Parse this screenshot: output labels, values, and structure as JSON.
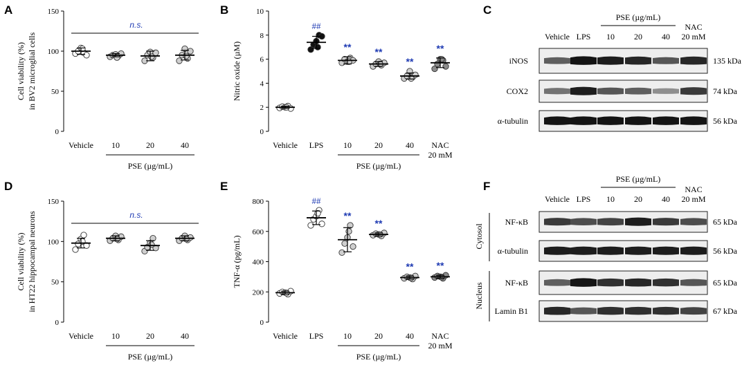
{
  "chart_data": [
    {
      "panel": "A",
      "type": "scatter",
      "ylabel": "Cell viability (%)\nin BV2 microglial cells",
      "ylabel_lines": [
        "Cell viability (%)",
        "in BV2 microglial cells"
      ],
      "ylim": [
        0,
        150
      ],
      "yticks": [
        0,
        50,
        100,
        150
      ],
      "categories": [
        "Vehicle",
        "10",
        "20",
        "40"
      ],
      "group_label": "PSE (µg/mL)",
      "significance": "n.s.",
      "means": [
        100,
        95,
        94,
        95
      ],
      "sd": [
        4,
        2,
        6,
        6
      ],
      "points": [
        [
          97,
          100,
          104,
          98,
          95,
          103
        ],
        [
          93,
          95,
          96,
          94,
          97,
          92
        ],
        [
          88,
          95,
          99,
          92,
          98,
          93
        ],
        [
          88,
          95,
          103,
          91,
          100,
          94
        ]
      ],
      "fill": [
        "white",
        "lightgray",
        "lightgray",
        "lightgray"
      ]
    },
    {
      "panel": "B",
      "type": "scatter",
      "ylabel": "Nitric oxide (µM)",
      "ylim": [
        0,
        10
      ],
      "yticks": [
        0,
        2,
        4,
        6,
        8,
        10
      ],
      "categories": [
        "Vehicle",
        "LPS",
        "10",
        "20",
        "40",
        "NAC\n20 mM"
      ],
      "category_lines": [
        [
          "Vehicle"
        ],
        [
          "LPS"
        ],
        [
          "10"
        ],
        [
          "20"
        ],
        [
          "40"
        ],
        [
          "NAC",
          "20 mM"
        ]
      ],
      "group_label": "PSE (µg/mL)",
      "means": [
        2.0,
        7.4,
        5.9,
        5.6,
        4.6,
        5.7
      ],
      "sd": [
        0.1,
        0.5,
        0.3,
        0.2,
        0.25,
        0.4
      ],
      "points": [
        [
          1.95,
          2.05,
          2.0,
          2.1,
          1.9,
          2.0
        ],
        [
          6.8,
          7.2,
          7.5,
          8.0,
          7.9,
          7.0
        ],
        [
          5.7,
          6.0,
          5.8,
          6.1,
          5.9,
          5.8
        ],
        [
          5.4,
          5.6,
          5.8,
          5.5,
          5.7,
          5.6
        ],
        [
          4.4,
          4.6,
          5.0,
          4.5,
          4.7,
          4.4
        ],
        [
          5.2,
          5.6,
          6.0,
          5.9,
          5.4,
          6.0
        ]
      ],
      "fill": [
        "white",
        "black",
        "lightgray",
        "lightgray",
        "lightgray",
        "gray"
      ],
      "annotations": [
        "",
        "##",
        "**",
        "**",
        "**",
        "**"
      ]
    },
    {
      "panel": "D",
      "type": "scatter",
      "ylabel": "Cell viability (%)\nin HT22 hippocampal neurons",
      "ylabel_lines": [
        "Cell viability (%)",
        "in HT22 hippocampal neurons"
      ],
      "ylim": [
        0,
        150
      ],
      "yticks": [
        0,
        50,
        100,
        150
      ],
      "categories": [
        "Vehicle",
        "10",
        "20",
        "40"
      ],
      "group_label": "PSE (µg/mL)",
      "significance": "n.s.",
      "means": [
        98,
        104,
        95,
        104
      ],
      "sd": [
        6,
        3,
        6,
        3
      ],
      "points": [
        [
          90,
          97,
          103,
          108,
          95,
          100
        ],
        [
          101,
          104,
          107,
          102,
          106,
          103
        ],
        [
          88,
          93,
          98,
          104,
          92,
          96
        ],
        [
          101,
          104,
          107,
          102,
          105,
          103
        ]
      ],
      "fill": [
        "white",
        "lightgray",
        "lightgray",
        "lightgray"
      ]
    },
    {
      "panel": "E",
      "type": "scatter",
      "ylabel": "TNF-α (pg/mL)",
      "ylim": [
        0,
        800
      ],
      "yticks": [
        0,
        200,
        400,
        600,
        800
      ],
      "categories": [
        "Vehicle",
        "LPS",
        "10",
        "20",
        "40",
        "NAC\n20 mM"
      ],
      "category_lines": [
        [
          "Vehicle"
        ],
        [
          "LPS"
        ],
        [
          "10"
        ],
        [
          "20"
        ],
        [
          "40"
        ],
        [
          "NAC",
          "20 mM"
        ]
      ],
      "group_label": "PSE (µg/mL)",
      "means": [
        195,
        690,
        545,
        580,
        295,
        300
      ],
      "sd": [
        10,
        45,
        80,
        10,
        10,
        10
      ],
      "points": [
        [
          190,
          200,
          195,
          185,
          205,
          193
        ],
        [
          640,
          680,
          700,
          740,
          650,
          720
        ],
        [
          460,
          520,
          560,
          640,
          500,
          600
        ],
        [
          575,
          585,
          580,
          570,
          590,
          580
        ],
        [
          290,
          300,
          295,
          285,
          305,
          293
        ],
        [
          295,
          305,
          300,
          290,
          310,
          298
        ]
      ],
      "fill": [
        "white",
        "white",
        "lightgray",
        "lightgray",
        "lightgray",
        "gray"
      ],
      "annotations": [
        "",
        "##",
        "**",
        "**",
        "**",
        "**"
      ]
    }
  ],
  "blot_C": {
    "panel": "C",
    "header_group": "PSE (µg/mL)",
    "lanes": [
      "Vehicle",
      "LPS",
      "10",
      "20",
      "40",
      "NAC\n20 mM"
    ],
    "lane_lines": [
      [
        "Vehicle"
      ],
      [
        "LPS"
      ],
      [
        "10"
      ],
      [
        "20"
      ],
      [
        "40"
      ],
      [
        "NAC",
        "20 mM"
      ]
    ],
    "rows": [
      {
        "protein": "iNOS",
        "size": "135 kDa",
        "intensity": [
          0.55,
          0.95,
          0.9,
          0.85,
          0.6,
          0.85
        ]
      },
      {
        "protein": "COX2",
        "size": "74 kDa",
        "intensity": [
          0.45,
          0.9,
          0.6,
          0.55,
          0.3,
          0.75
        ]
      },
      {
        "protein": "α-tubulin",
        "size": "56 kDa",
        "intensity": [
          0.95,
          0.95,
          0.95,
          0.95,
          0.95,
          0.95
        ]
      }
    ]
  },
  "blot_F": {
    "panel": "F",
    "header_group": "PSE (µg/mL)",
    "lanes": [
      "Vehicle",
      "LPS",
      "10",
      "20",
      "40",
      "NAC\n20 mM"
    ],
    "lane_lines": [
      [
        "Vehicle"
      ],
      [
        "LPS"
      ],
      [
        "10"
      ],
      [
        "20"
      ],
      [
        "40"
      ],
      [
        "NAC",
        "20 mM"
      ]
    ],
    "sections": [
      {
        "name": "Cytosol",
        "rows": [
          {
            "protein": "NF-κB",
            "size": "65 kDa",
            "intensity": [
              0.75,
              0.65,
              0.7,
              0.9,
              0.75,
              0.65
            ]
          },
          {
            "protein": "α-tubulin",
            "size": "56 kDa",
            "intensity": [
              0.9,
              0.9,
              0.9,
              0.9,
              0.9,
              0.9
            ]
          }
        ]
      },
      {
        "name": "Nucleus",
        "rows": [
          {
            "protein": "NF-κB",
            "size": "65 kDa",
            "intensity": [
              0.55,
              0.95,
              0.8,
              0.85,
              0.8,
              0.6
            ]
          },
          {
            "protein": "Lamin B1",
            "size": "67 kDa",
            "intensity": [
              0.85,
              0.6,
              0.8,
              0.8,
              0.8,
              0.7
            ]
          }
        ]
      }
    ]
  }
}
